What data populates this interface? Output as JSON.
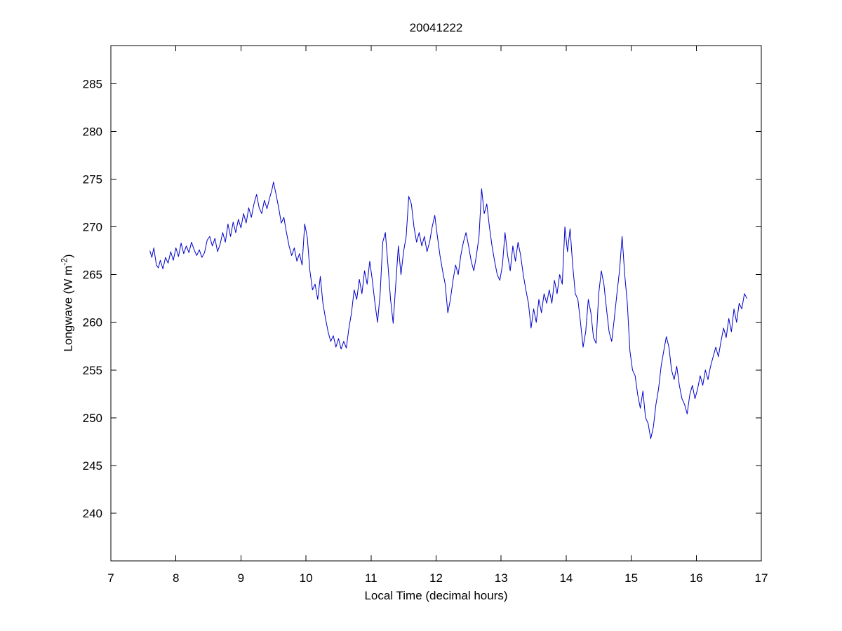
{
  "chart_data": {
    "type": "line",
    "title": "20041222",
    "xlabel": "Local Time (decimal hours)",
    "ylabel": "Longwave (W m-2)",
    "ylabel_main": "Longwave (W m",
    "ylabel_sup": "-2",
    "ylabel_close": ")",
    "xlim": [
      7,
      17
    ],
    "ylim": [
      235,
      289
    ],
    "xticks": [
      7,
      8,
      9,
      10,
      11,
      12,
      13,
      14,
      15,
      16,
      17
    ],
    "yticks": [
      240,
      245,
      250,
      255,
      260,
      265,
      270,
      275,
      280,
      285
    ],
    "grid": false,
    "legend": null,
    "line_color": "#0000cc",
    "axis_color": "#000000",
    "points": [
      [
        7.6,
        267.5
      ],
      [
        7.63,
        266.8
      ],
      [
        7.66,
        267.8
      ],
      [
        7.7,
        266.0
      ],
      [
        7.73,
        265.7
      ],
      [
        7.76,
        266.5
      ],
      [
        7.8,
        265.6
      ],
      [
        7.84,
        266.8
      ],
      [
        7.88,
        266.2
      ],
      [
        7.92,
        267.4
      ],
      [
        7.96,
        266.5
      ],
      [
        8.0,
        267.8
      ],
      [
        8.04,
        266.9
      ],
      [
        8.08,
        268.3
      ],
      [
        8.12,
        267.2
      ],
      [
        8.16,
        268.0
      ],
      [
        8.2,
        267.3
      ],
      [
        8.24,
        268.4
      ],
      [
        8.28,
        267.6
      ],
      [
        8.32,
        267.0
      ],
      [
        8.36,
        267.6
      ],
      [
        8.4,
        266.8
      ],
      [
        8.44,
        267.3
      ],
      [
        8.48,
        268.6
      ],
      [
        8.52,
        269.0
      ],
      [
        8.56,
        268.0
      ],
      [
        8.6,
        268.8
      ],
      [
        8.64,
        267.4
      ],
      [
        8.68,
        268.2
      ],
      [
        8.72,
        269.4
      ],
      [
        8.76,
        268.4
      ],
      [
        8.8,
        270.3
      ],
      [
        8.84,
        269.0
      ],
      [
        8.88,
        270.5
      ],
      [
        8.92,
        269.4
      ],
      [
        8.96,
        270.8
      ],
      [
        9.0,
        269.9
      ],
      [
        9.04,
        271.4
      ],
      [
        9.08,
        270.4
      ],
      [
        9.12,
        272.0
      ],
      [
        9.16,
        271.0
      ],
      [
        9.2,
        272.4
      ],
      [
        9.24,
        273.4
      ],
      [
        9.28,
        272.0
      ],
      [
        9.32,
        271.4
      ],
      [
        9.36,
        272.8
      ],
      [
        9.4,
        271.9
      ],
      [
        9.44,
        273.0
      ],
      [
        9.48,
        274.0
      ],
      [
        9.5,
        274.7
      ],
      [
        9.54,
        273.4
      ],
      [
        9.58,
        272.0
      ],
      [
        9.62,
        270.4
      ],
      [
        9.66,
        271.0
      ],
      [
        9.7,
        269.4
      ],
      [
        9.74,
        268.0
      ],
      [
        9.78,
        267.0
      ],
      [
        9.82,
        267.8
      ],
      [
        9.86,
        266.4
      ],
      [
        9.9,
        267.2
      ],
      [
        9.94,
        266.0
      ],
      [
        9.98,
        270.3
      ],
      [
        10.02,
        268.9
      ],
      [
        10.06,
        265.4
      ],
      [
        10.1,
        263.4
      ],
      [
        10.14,
        264.0
      ],
      [
        10.18,
        262.4
      ],
      [
        10.22,
        264.8
      ],
      [
        10.26,
        262.0
      ],
      [
        10.3,
        260.4
      ],
      [
        10.34,
        259.0
      ],
      [
        10.38,
        258.0
      ],
      [
        10.42,
        258.6
      ],
      [
        10.46,
        257.4
      ],
      [
        10.5,
        258.3
      ],
      [
        10.54,
        257.2
      ],
      [
        10.58,
        258.0
      ],
      [
        10.62,
        257.3
      ],
      [
        10.66,
        259.4
      ],
      [
        10.7,
        261.0
      ],
      [
        10.74,
        263.4
      ],
      [
        10.78,
        262.4
      ],
      [
        10.82,
        264.5
      ],
      [
        10.86,
        263.0
      ],
      [
        10.9,
        265.4
      ],
      [
        10.94,
        264.0
      ],
      [
        10.98,
        266.4
      ],
      [
        11.02,
        264.4
      ],
      [
        11.06,
        262.0
      ],
      [
        11.1,
        260.0
      ],
      [
        11.14,
        263.0
      ],
      [
        11.18,
        268.4
      ],
      [
        11.22,
        269.4
      ],
      [
        11.26,
        266.0
      ],
      [
        11.3,
        262.4
      ],
      [
        11.34,
        259.9
      ],
      [
        11.38,
        264.0
      ],
      [
        11.42,
        268.0
      ],
      [
        11.46,
        265.0
      ],
      [
        11.5,
        267.4
      ],
      [
        11.54,
        269.0
      ],
      [
        11.58,
        273.2
      ],
      [
        11.62,
        272.4
      ],
      [
        11.66,
        270.0
      ],
      [
        11.7,
        268.4
      ],
      [
        11.74,
        269.4
      ],
      [
        11.78,
        268.0
      ],
      [
        11.82,
        269.0
      ],
      [
        11.86,
        267.4
      ],
      [
        11.9,
        268.4
      ],
      [
        11.94,
        270.0
      ],
      [
        11.98,
        271.2
      ],
      [
        12.02,
        269.0
      ],
      [
        12.06,
        267.0
      ],
      [
        12.1,
        265.4
      ],
      [
        12.14,
        264.0
      ],
      [
        12.18,
        261.0
      ],
      [
        12.22,
        262.4
      ],
      [
        12.26,
        264.4
      ],
      [
        12.3,
        266.0
      ],
      [
        12.34,
        265.0
      ],
      [
        12.38,
        267.0
      ],
      [
        12.42,
        268.4
      ],
      [
        12.46,
        269.4
      ],
      [
        12.5,
        268.0
      ],
      [
        12.54,
        266.4
      ],
      [
        12.58,
        265.4
      ],
      [
        12.62,
        267.0
      ],
      [
        12.66,
        269.0
      ],
      [
        12.7,
        274.0
      ],
      [
        12.74,
        271.4
      ],
      [
        12.78,
        272.4
      ],
      [
        12.82,
        270.0
      ],
      [
        12.86,
        268.0
      ],
      [
        12.9,
        266.4
      ],
      [
        12.94,
        265.0
      ],
      [
        12.98,
        264.4
      ],
      [
        13.02,
        266.0
      ],
      [
        13.06,
        269.4
      ],
      [
        13.1,
        267.0
      ],
      [
        13.14,
        265.4
      ],
      [
        13.18,
        268.0
      ],
      [
        13.22,
        266.4
      ],
      [
        13.26,
        268.4
      ],
      [
        13.3,
        267.0
      ],
      [
        13.34,
        265.0
      ],
      [
        13.38,
        263.4
      ],
      [
        13.42,
        262.0
      ],
      [
        13.46,
        259.4
      ],
      [
        13.5,
        261.4
      ],
      [
        13.54,
        260.0
      ],
      [
        13.58,
        262.4
      ],
      [
        13.62,
        261.0
      ],
      [
        13.66,
        263.0
      ],
      [
        13.7,
        262.0
      ],
      [
        13.74,
        263.4
      ],
      [
        13.78,
        262.0
      ],
      [
        13.82,
        264.4
      ],
      [
        13.86,
        263.0
      ],
      [
        13.9,
        265.0
      ],
      [
        13.94,
        264.0
      ],
      [
        13.98,
        270.0
      ],
      [
        14.02,
        267.4
      ],
      [
        14.06,
        269.8
      ],
      [
        14.1,
        266.0
      ],
      [
        14.14,
        263.0
      ],
      [
        14.18,
        262.4
      ],
      [
        14.22,
        260.0
      ],
      [
        14.26,
        257.4
      ],
      [
        14.3,
        259.0
      ],
      [
        14.34,
        262.4
      ],
      [
        14.38,
        261.0
      ],
      [
        14.42,
        258.4
      ],
      [
        14.46,
        257.8
      ],
      [
        14.5,
        263.0
      ],
      [
        14.54,
        265.4
      ],
      [
        14.58,
        264.0
      ],
      [
        14.62,
        261.4
      ],
      [
        14.66,
        259.0
      ],
      [
        14.7,
        258.0
      ],
      [
        14.74,
        260.4
      ],
      [
        14.78,
        263.0
      ],
      [
        14.82,
        265.4
      ],
      [
        14.86,
        269.0
      ],
      [
        14.9,
        265.0
      ],
      [
        14.94,
        262.0
      ],
      [
        14.98,
        257.0
      ],
      [
        15.02,
        255.0
      ],
      [
        15.06,
        254.4
      ],
      [
        15.1,
        252.4
      ],
      [
        15.14,
        251.0
      ],
      [
        15.18,
        252.8
      ],
      [
        15.22,
        250.0
      ],
      [
        15.26,
        249.4
      ],
      [
        15.3,
        247.8
      ],
      [
        15.34,
        249.0
      ],
      [
        15.38,
        251.4
      ],
      [
        15.42,
        253.0
      ],
      [
        15.46,
        255.4
      ],
      [
        15.5,
        257.0
      ],
      [
        15.54,
        258.5
      ],
      [
        15.58,
        257.4
      ],
      [
        15.62,
        255.0
      ],
      [
        15.66,
        254.0
      ],
      [
        15.7,
        255.4
      ],
      [
        15.74,
        253.4
      ],
      [
        15.78,
        252.0
      ],
      [
        15.82,
        251.4
      ],
      [
        15.86,
        250.4
      ],
      [
        15.9,
        252.4
      ],
      [
        15.94,
        253.4
      ],
      [
        15.98,
        252.0
      ],
      [
        16.02,
        253.0
      ],
      [
        16.06,
        254.4
      ],
      [
        16.1,
        253.4
      ],
      [
        16.14,
        255.0
      ],
      [
        16.18,
        254.0
      ],
      [
        16.22,
        255.4
      ],
      [
        16.26,
        256.4
      ],
      [
        16.3,
        257.4
      ],
      [
        16.34,
        256.4
      ],
      [
        16.38,
        258.0
      ],
      [
        16.42,
        259.4
      ],
      [
        16.46,
        258.4
      ],
      [
        16.5,
        260.4
      ],
      [
        16.54,
        259.0
      ],
      [
        16.58,
        261.4
      ],
      [
        16.62,
        260.0
      ],
      [
        16.66,
        262.0
      ],
      [
        16.7,
        261.4
      ],
      [
        16.74,
        263.0
      ],
      [
        16.78,
        262.5
      ]
    ]
  }
}
